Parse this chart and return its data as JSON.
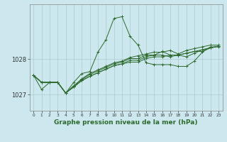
{
  "background_color": "#cce8ee",
  "grid_color": "#aacccc",
  "line_color": "#2d6a2d",
  "xlabel": "Graphe pression niveau de la mer (hPa)",
  "yticks": [
    1027,
    1028
  ],
  "xlim": [
    -0.5,
    23.5
  ],
  "ylim": [
    1026.55,
    1029.55
  ],
  "figsize": [
    3.2,
    2.0
  ],
  "dpi": 100,
  "series": [
    [
      1027.55,
      1027.15,
      1027.35,
      1027.35,
      1027.05,
      1027.35,
      1027.6,
      1027.65,
      1028.2,
      1028.55,
      1029.15,
      1029.2,
      1028.65,
      1028.4,
      1027.9,
      1027.85,
      1027.85,
      1027.85,
      1027.8,
      1027.8,
      1027.95,
      1028.2,
      1028.35,
      1028.35
    ],
    [
      1027.55,
      1027.35,
      1027.35,
      1027.35,
      1027.05,
      1027.25,
      1027.45,
      1027.6,
      1027.7,
      1027.8,
      1027.9,
      1027.95,
      1028.05,
      1028.1,
      1028.15,
      1028.2,
      1028.2,
      1028.25,
      1028.15,
      1028.25,
      1028.3,
      1028.35,
      1028.4,
      1028.4
    ],
    [
      1027.55,
      1027.35,
      1027.35,
      1027.35,
      1027.05,
      1027.25,
      1027.43,
      1027.57,
      1027.67,
      1027.77,
      1027.87,
      1027.92,
      1028.02,
      1028.02,
      1028.12,
      1028.12,
      1028.22,
      1028.12,
      1028.12,
      1028.07,
      1028.17,
      1028.27,
      1028.32,
      1028.37
    ],
    [
      1027.55,
      1027.35,
      1027.35,
      1027.35,
      1027.05,
      1027.22,
      1027.4,
      1027.52,
      1027.62,
      1027.72,
      1027.82,
      1027.87,
      1027.97,
      1027.97,
      1028.07,
      1028.12,
      1028.12,
      1028.07,
      1028.12,
      1028.17,
      1028.22,
      1028.27,
      1028.32,
      1028.37
    ],
    [
      1027.55,
      1027.35,
      1027.35,
      1027.35,
      1027.05,
      1027.22,
      1027.4,
      1027.52,
      1027.62,
      1027.72,
      1027.82,
      1027.87,
      1027.92,
      1027.92,
      1028.02,
      1028.07,
      1028.07,
      1028.12,
      1028.12,
      1028.17,
      1028.22,
      1028.22,
      1028.32,
      1028.37
    ]
  ],
  "xticks": [
    0,
    1,
    2,
    3,
    4,
    5,
    6,
    7,
    8,
    9,
    10,
    11,
    12,
    13,
    14,
    15,
    16,
    17,
    18,
    19,
    20,
    21,
    22,
    23
  ],
  "xlabel_fontsize": 6.5,
  "ytick_fontsize": 6,
  "xtick_fontsize": 4.2
}
